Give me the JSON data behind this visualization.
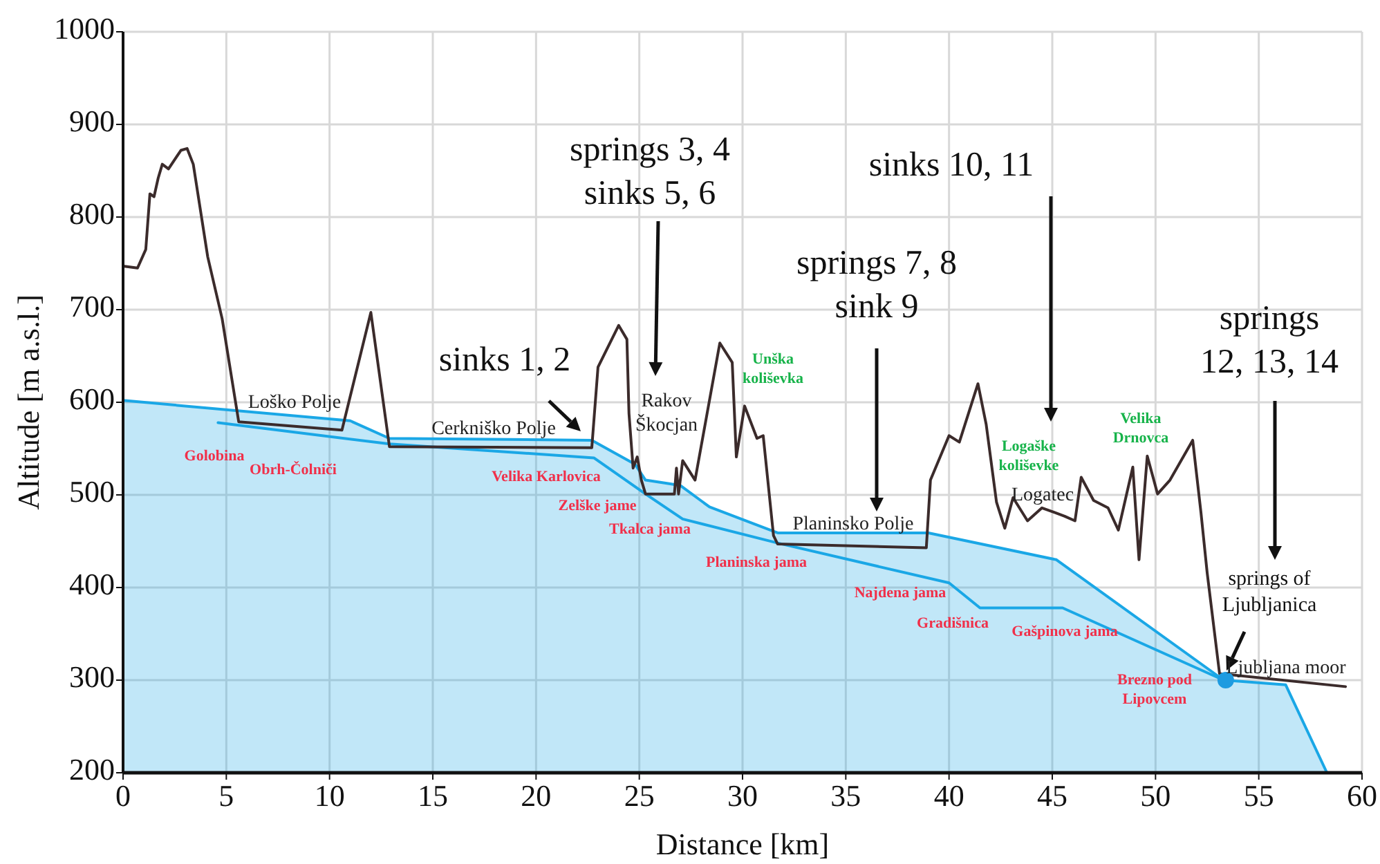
{
  "chart_data": {
    "type": "line",
    "xlabel": "Distance [km]",
    "ylabel": "Altitude [m a.s.l.]",
    "xlim": [
      0,
      60
    ],
    "xticks": [
      0,
      5,
      10,
      15,
      20,
      25,
      30,
      35,
      40,
      45,
      50,
      55,
      60
    ],
    "ylim": [
      200,
      1000
    ],
    "yticks": [
      200,
      300,
      400,
      500,
      600,
      700,
      800,
      900,
      1000
    ],
    "grid": true,
    "series": [
      {
        "type": "area",
        "color": "#1aa7e6",
        "x": [
          0,
          11.0,
          12.9,
          22.7,
          24.8,
          25.3,
          26.5,
          27.0,
          28.4,
          31.7,
          39.0,
          45.2,
          53.3,
          56.3,
          58.3
        ],
        "values": [
          602,
          580,
          561,
          559,
          533,
          516,
          512,
          510,
          487,
          459,
          459,
          430,
          300,
          295,
          200
        ]
      },
      {
        "type": "line",
        "color": "#1aa7e6",
        "x": [
          4.6,
          12.9,
          22.8,
          25.3,
          27.1,
          31.7,
          40.0,
          41.5,
          45.5,
          53.3
        ],
        "values": [
          578,
          555,
          540,
          501,
          474,
          448,
          405,
          378,
          378,
          300
        ]
      },
      {
        "type": "line",
        "color": "#3b2b2b",
        "x": [
          0,
          0.7,
          1.1,
          1.3,
          1.5,
          1.7,
          1.9,
          2.2,
          2.8,
          3.1,
          3.4,
          4.1,
          4.8,
          5.6,
          10.6,
          12.0,
          12.9,
          22.7,
          23.0,
          24.0,
          24.4,
          24.5,
          24.7,
          24.9,
          25.1,
          25.3,
          26.7,
          26.8,
          26.9,
          27.1,
          27.7,
          28.9,
          29.5,
          29.7,
          30.1,
          30.7,
          31.0,
          31.5,
          31.7,
          38.9,
          39.1,
          40.0,
          40.5,
          41.4,
          41.8,
          42.3,
          42.7,
          43.1,
          43.8,
          44.5,
          45.6,
          46.1,
          46.4,
          47.0,
          47.7,
          48.2,
          48.9,
          49.2,
          49.6,
          50.1,
          50.7,
          51.8,
          52.2,
          52.5,
          53.1,
          59.2
        ],
        "values": [
          747,
          745,
          765,
          825,
          822,
          842,
          857,
          852,
          872,
          874,
          857,
          757,
          690,
          579,
          570,
          697,
          552,
          551,
          638,
          683,
          668,
          588,
          529,
          541,
          516,
          501,
          501,
          529,
          501,
          537,
          516,
          664,
          643,
          541,
          596,
          561,
          564,
          456,
          447,
          443,
          516,
          564,
          557,
          620,
          576,
          492,
          464,
          497,
          472,
          486,
          477,
          472,
          519,
          494,
          486,
          462,
          530,
          430,
          542,
          501,
          516,
          559,
          481,
          416,
          307,
          293
        ]
      },
      {
        "type": "scatter",
        "color": "#1e9be0",
        "marker": "circle",
        "x": [
          53.4
        ],
        "values": [
          300
        ]
      }
    ],
    "annotations": [
      "springs 3, 4\nsinks 5, 6",
      "sinks 1, 2",
      "springs 7, 8\nsink 9",
      "sinks 10, 11",
      "springs\n12, 13, 14",
      "springs of\nLjubljanica",
      "Loško Polje",
      "Cerkniško Polje",
      "Rakov\nŠkocjan",
      "Planinsko Polje",
      "Logatec",
      "Ljubljana moor",
      "Unška\nkoliševka",
      "Logaške\nkoliševke",
      "Velika\nDrnovca",
      "Golobina",
      "Obrh-Čolniči",
      "Velika Karlovica",
      "Zelške jame",
      "Tkalca jama",
      "Planinska jama",
      "Najdena jama",
      "Gradišnica",
      "Gašpinova jama",
      "Brezno pod\nLipovcem"
    ]
  }
}
